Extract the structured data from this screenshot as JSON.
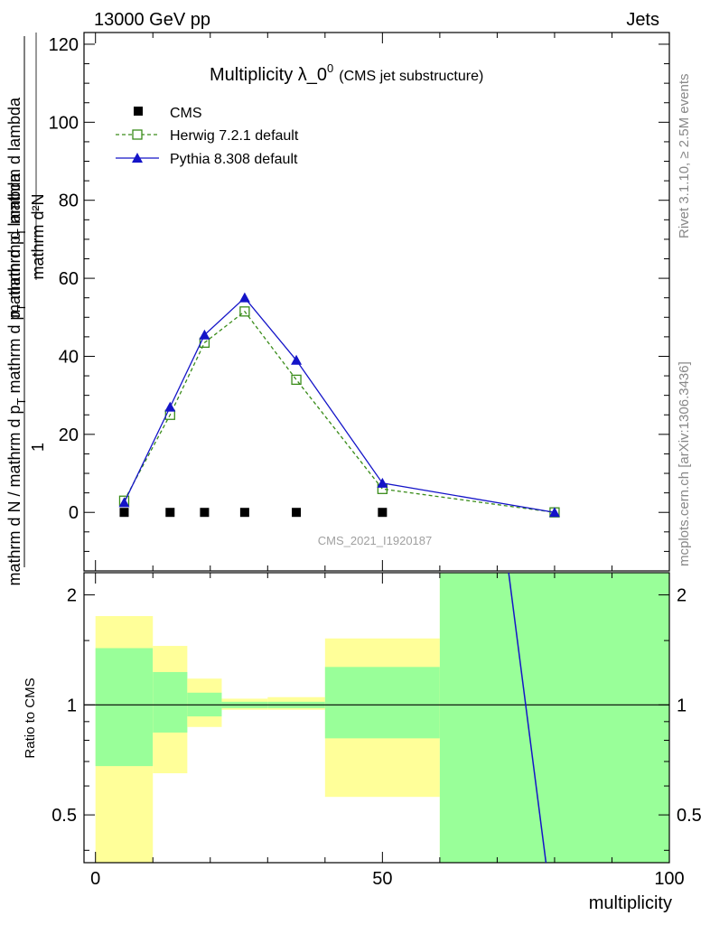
{
  "header": {
    "left": "13000 GeV pp",
    "right": "Jets"
  },
  "side_labels": {
    "rivet": "Rivet 3.1.10, ≥ 2.5M events",
    "mcplots": "mcplots.cern.ch [arXiv:1306.3436]"
  },
  "chart_data": [
    {
      "type": "line",
      "title_main": "Multiplicity λ_0",
      "title_sup": "0",
      "title_paren": "(CMS jet substructure)",
      "watermark": "CMS_2021_I1920187",
      "ylabel_parts": {
        "top": "mathrm d²N",
        "bottom_left": "mathrm d p",
        "bottom_sub": "T",
        "bottom_right": " mathrm d lambda",
        "prefactor": "1",
        "pre_den": "mathrm d N / mathrm d p",
        "pre_den_sub": "T",
        "pre_den_right": " mathrm d p",
        "pre_den_sub2": "T",
        "pre_den_right2": " mathrm d lambda"
      },
      "ylabel_top_display": "mathrm d²N",
      "ylabel_top_sup": "2",
      "xlim": [
        -2,
        100
      ],
      "ylim": [
        -15,
        123
      ],
      "yticks": [
        0,
        20,
        40,
        60,
        80,
        100,
        120
      ],
      "ytick_labels": [
        "0",
        "20",
        "40",
        "60",
        "80",
        "100",
        "120"
      ],
      "legend_position": "top-left",
      "series": [
        {
          "name": "CMS",
          "color": "#000000",
          "marker": "square-filled",
          "x": [
            5,
            13,
            19,
            26,
            35,
            50
          ],
          "y": [
            0,
            0,
            0,
            0,
            0,
            0
          ]
        },
        {
          "name": "Herwig 7.2.1 default",
          "color": "#3a8c1a",
          "marker": "square-open",
          "line": "dashed",
          "x": [
            5,
            13,
            19,
            26,
            35,
            50,
            80
          ],
          "y": [
            3,
            25,
            43.5,
            51.5,
            34,
            6,
            0
          ]
        },
        {
          "name": "Pythia 8.308 default",
          "color": "#1414c8",
          "marker": "triangle-filled",
          "line": "solid",
          "x": [
            5,
            13,
            19,
            26,
            35,
            50,
            80
          ],
          "y": [
            2.5,
            27,
            45.5,
            55,
            39,
            7.5,
            0
          ]
        }
      ]
    },
    {
      "type": "area",
      "ylabel": "Ratio to CMS",
      "xlabel": "multiplicity",
      "xlim": [
        -2,
        100
      ],
      "ylim": [
        0.37,
        2.3
      ],
      "log_scale_y": true,
      "xticks": [
        0,
        50,
        100
      ],
      "xtick_labels": [
        "0",
        "50",
        "100"
      ],
      "yticks": [
        0.5,
        1,
        2
      ],
      "ytick_labels": [
        "0.5",
        "1",
        "2"
      ],
      "band_colors": {
        "yellow": "#ffff99",
        "green": "#99ff99"
      },
      "bins": [
        {
          "x0": 0,
          "x1": 10,
          "yellow": [
            0.3,
            1.75
          ],
          "green": [
            0.68,
            1.43
          ]
        },
        {
          "x0": 10,
          "x1": 16,
          "yellow": [
            0.65,
            1.45
          ],
          "green": [
            0.84,
            1.23
          ]
        },
        {
          "x0": 16,
          "x1": 22,
          "yellow": [
            0.87,
            1.18
          ],
          "green": [
            0.93,
            1.08
          ]
        },
        {
          "x0": 22,
          "x1": 30,
          "yellow": [
            0.97,
            1.04
          ],
          "green": [
            0.98,
            1.02
          ]
        },
        {
          "x0": 30,
          "x1": 40,
          "yellow": [
            0.97,
            1.05
          ],
          "green": [
            0.98,
            1.02
          ]
        },
        {
          "x0": 40,
          "x1": 60,
          "yellow": [
            0.56,
            1.52
          ],
          "green": [
            0.81,
            1.27
          ]
        },
        {
          "x0": 60,
          "x1": 100,
          "yellow": [
            0.3,
            3.0
          ],
          "green": [
            0.3,
            3.0
          ]
        }
      ],
      "reference_y": 1,
      "series": [
        {
          "name": "Pythia 8.308 default",
          "color": "#1414c8",
          "x": [
            72,
            78.5
          ],
          "y": [
            2.3,
            0.37
          ]
        }
      ]
    }
  ]
}
